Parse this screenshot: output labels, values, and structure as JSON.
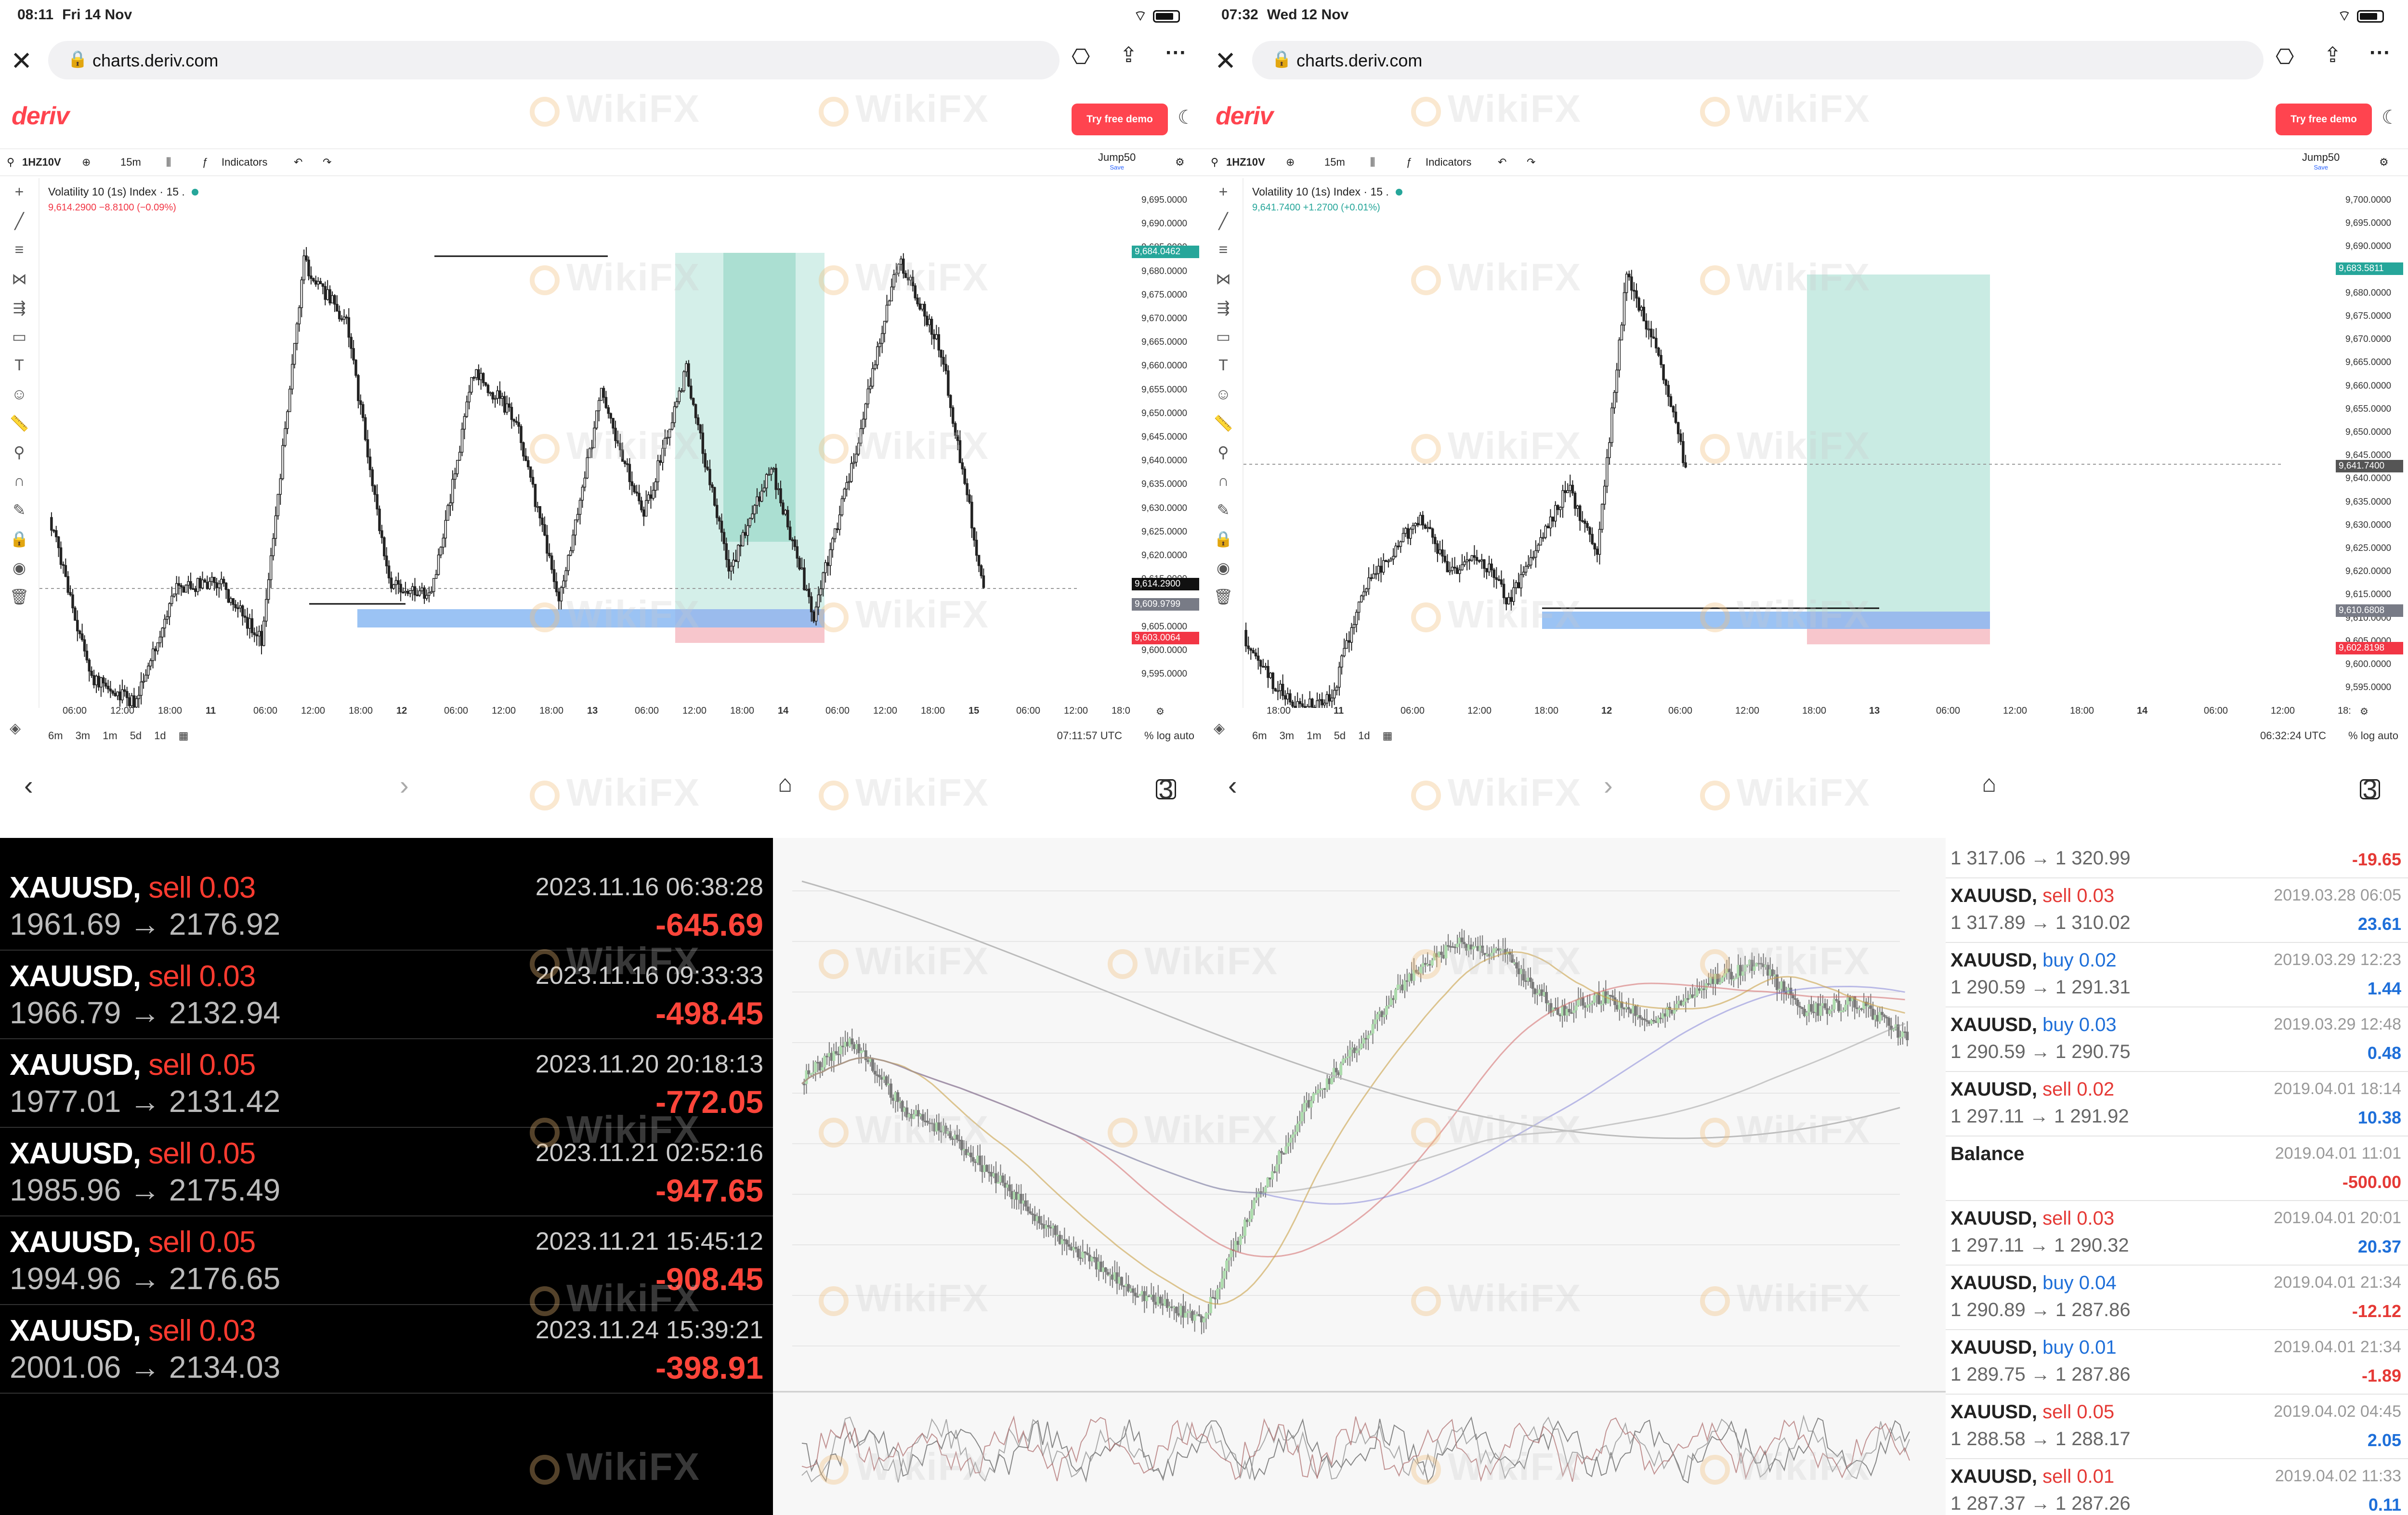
{
  "left_screen": {
    "status": {
      "time": "08:11",
      "date": "Fri 14 Nov"
    },
    "url": "charts.deriv.com",
    "logo": "deriv",
    "demo_button": "Try free demo",
    "toolbar": {
      "symbol": "1HZ10V",
      "interval": "15m",
      "indicators": "Indicators",
      "account": "Jump50",
      "account_sub": "Save"
    },
    "legend": {
      "title": "Volatility 10 (1s) Index · 15 .",
      "sub": "9,614.2900  −8.8100 (−0.09%)"
    },
    "price_ticks": [
      "9,695.0000",
      "9,690.0000",
      "9,685.0000",
      "9,680.0000",
      "9,675.0000",
      "9,670.0000",
      "9,665.0000",
      "9,660.0000",
      "9,655.0000",
      "9,650.0000",
      "9,645.0000",
      "9,640.0000",
      "9,635.0000",
      "9,630.0000",
      "9,625.0000",
      "9,620.0000",
      "9,615.0000",
      "9,610.0000",
      "9,605.0000",
      "9,600.0000",
      "9,595.0000"
    ],
    "price_tags": [
      {
        "label": "9,684.0462",
        "color": "#26a69a"
      },
      {
        "label": "9,614.2900",
        "color": "#111111"
      },
      {
        "label": "9,609.9799",
        "color": "#787b86"
      },
      {
        "label": "9,603.0064",
        "color": "#f23645"
      }
    ],
    "time_ticks": [
      "06:00",
      "12:00",
      "18:00",
      "11",
      "06:00",
      "12:00",
      "18:00",
      "12",
      "06:00",
      "12:00",
      "18:00",
      "13",
      "06:00",
      "12:00",
      "18:00",
      "14",
      "06:00",
      "12:00",
      "18:00",
      "15",
      "06:00",
      "12:00",
      "18:0"
    ],
    "ranges": [
      "6m",
      "3m",
      "1m",
      "5d",
      "1d"
    ],
    "clock": "07:11:57 UTC",
    "scale_opts": "%  log  auto",
    "tabs": "3"
  },
  "right_screen": {
    "status": {
      "time": "07:32",
      "date": "Wed 12 Nov"
    },
    "url": "charts.deriv.com",
    "logo": "deriv",
    "demo_button": "Try free demo",
    "toolbar": {
      "symbol": "1HZ10V",
      "interval": "15m",
      "indicators": "Indicators",
      "account": "Jump50",
      "account_sub": "Save"
    },
    "legend": {
      "title": "Volatility 10 (1s) Index · 15 .",
      "sub": "9,641.7400  +1.2700 (+0.01%)"
    },
    "price_ticks": [
      "9,700.0000",
      "9,695.0000",
      "9,690.0000",
      "9,685.0000",
      "9,680.0000",
      "9,675.0000",
      "9,670.0000",
      "9,665.0000",
      "9,660.0000",
      "9,655.0000",
      "9,650.0000",
      "9,645.0000",
      "9,640.0000",
      "9,635.0000",
      "9,630.0000",
      "9,625.0000",
      "9,620.0000",
      "9,615.0000",
      "9,610.0000",
      "9,605.0000",
      "9,600.0000",
      "9,595.0000"
    ],
    "price_tags": [
      {
        "label": "9,683.5811",
        "color": "#26a69a"
      },
      {
        "label": "9,641.7400",
        "color": "#555555"
      },
      {
        "label": "9,610.6808",
        "color": "#787b86"
      },
      {
        "label": "9,602.8198",
        "color": "#f23645"
      }
    ],
    "time_ticks": [
      "18:00",
      "11",
      "06:00",
      "12:00",
      "18:00",
      "12",
      "06:00",
      "12:00",
      "18:00",
      "13",
      "06:00",
      "12:00",
      "18:00",
      "14",
      "06:00",
      "12:00",
      "18:"
    ],
    "ranges": [
      "6m",
      "3m",
      "1m",
      "5d",
      "1d"
    ],
    "clock": "06:32:24 UTC",
    "scale_opts": "%  log  auto",
    "tabs": "3"
  },
  "dark_trades": [
    {
      "symbol": "XAUUSD,",
      "side": "sell 0.03",
      "datetime": "2023.11.16 06:38:28",
      "prices": "1961.69 → 2176.92",
      "pl": "-645.69"
    },
    {
      "symbol": "XAUUSD,",
      "side": "sell 0.03",
      "datetime": "2023.11.16 09:33:33",
      "prices": "1966.79 → 2132.94",
      "pl": "-498.45"
    },
    {
      "symbol": "XAUUSD,",
      "side": "sell 0.05",
      "datetime": "2023.11.20 20:18:13",
      "prices": "1977.01 → 2131.42",
      "pl": "-772.05"
    },
    {
      "symbol": "XAUUSD,",
      "side": "sell 0.05",
      "datetime": "2023.11.21 02:52:16",
      "prices": "1985.96 → 2175.49",
      "pl": "-947.65"
    },
    {
      "symbol": "XAUUSD,",
      "side": "sell 0.05",
      "datetime": "2023.11.21 15:45:12",
      "prices": "1994.96 → 2176.65",
      "pl": "-908.45"
    },
    {
      "symbol": "XAUUSD,",
      "side": "sell 0.03",
      "datetime": "2023.11.24 15:39:21",
      "prices": "2001.06 → 2134.03",
      "pl": "-398.91"
    }
  ],
  "light_trades": [
    {
      "symbol": "",
      "side": "",
      "side_type": "",
      "datetime": "",
      "prices": "1 317.06 → 1 320.99",
      "pl": "-19.65",
      "pl_type": "neg"
    },
    {
      "symbol": "XAUUSD,",
      "side": "sell 0.03",
      "side_type": "neg",
      "datetime": "2019.03.28 06:05",
      "prices": "1 317.89 → 1 310.02",
      "pl": "23.61",
      "pl_type": "pos"
    },
    {
      "symbol": "XAUUSD,",
      "side": "buy 0.02",
      "side_type": "pos",
      "datetime": "2019.03.29 12:23",
      "prices": "1 290.59 → 1 291.31",
      "pl": "1.44",
      "pl_type": "pos"
    },
    {
      "symbol": "XAUUSD,",
      "side": "buy 0.03",
      "side_type": "pos",
      "datetime": "2019.03.29 12:48",
      "prices": "1 290.59 → 1 290.75",
      "pl": "0.48",
      "pl_type": "pos"
    },
    {
      "symbol": "XAUUSD,",
      "side": "sell 0.02",
      "side_type": "neg",
      "datetime": "2019.04.01 18:14",
      "prices": "1 297.11 → 1 291.92",
      "pl": "10.38",
      "pl_type": "pos"
    },
    {
      "symbol": "Balance",
      "side": "",
      "side_type": "",
      "datetime": "2019.04.01 11:01",
      "prices": "",
      "pl": "-500.00",
      "pl_type": "neg"
    },
    {
      "symbol": "XAUUSD,",
      "side": "sell 0.03",
      "side_type": "neg",
      "datetime": "2019.04.01 20:01",
      "prices": "1 297.11 → 1 290.32",
      "pl": "20.37",
      "pl_type": "pos"
    },
    {
      "symbol": "XAUUSD,",
      "side": "buy 0.04",
      "side_type": "pos",
      "datetime": "2019.04.01 21:34",
      "prices": "1 290.89 → 1 287.86",
      "pl": "-12.12",
      "pl_type": "neg"
    },
    {
      "symbol": "XAUUSD,",
      "side": "buy 0.01",
      "side_type": "pos",
      "datetime": "2019.04.01 21:34",
      "prices": "1 289.75 → 1 287.86",
      "pl": "-1.89",
      "pl_type": "neg"
    },
    {
      "symbol": "XAUUSD,",
      "side": "sell 0.05",
      "side_type": "neg",
      "datetime": "2019.04.02 04:45",
      "prices": "1 288.58 → 1 288.17",
      "pl": "2.05",
      "pl_type": "pos"
    },
    {
      "symbol": "XAUUSD,",
      "side": "sell 0.01",
      "side_type": "neg",
      "datetime": "2019.04.02 11:33",
      "prices": "1 287.37 → 1 287.26",
      "pl": "0.11",
      "pl_type": "pos"
    }
  ],
  "watermark": "WikiFX",
  "colors": {
    "deriv_red": "#ff444f",
    "profit_zone": "#b7e4da",
    "loss_zone": "#f7c6cc",
    "blue_zone": "#8ab8f2"
  }
}
